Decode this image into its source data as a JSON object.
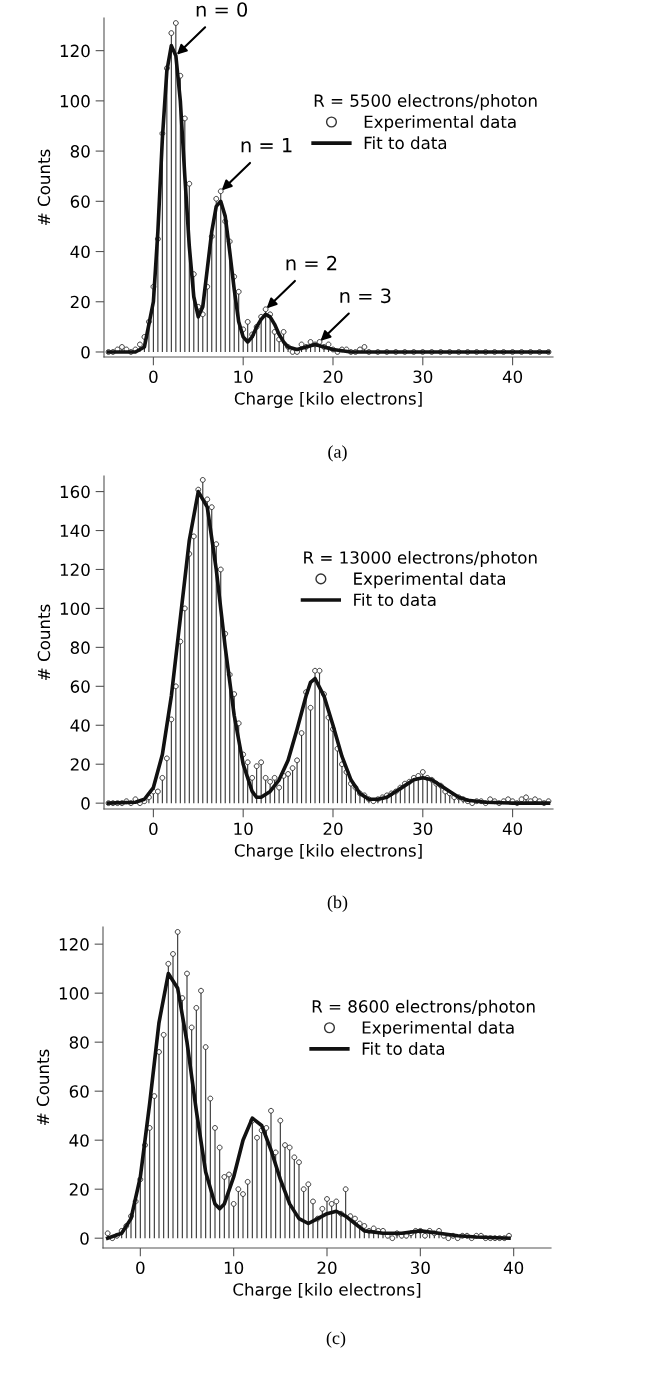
{
  "chart_data": [
    {
      "type": "lollipop",
      "xlabel": "Charge [kilo electrons]",
      "ylabel": "# Counts",
      "xlim": [
        -5.5,
        44.5
      ],
      "ylim": [
        -2,
        133
      ],
      "xticks": [
        0,
        10,
        20,
        30,
        40
      ],
      "yticks": [
        0,
        20,
        40,
        60,
        80,
        100,
        120
      ],
      "legend": "top right",
      "legend_title": "R = 5500 electrons/photon",
      "annotations": [
        {
          "text": "n = 0",
          "x": 2.5,
          "y": 118
        },
        {
          "text": "n = 1",
          "x": 7.5,
          "y": 64
        },
        {
          "text": "n = 2",
          "x": 12.5,
          "y": 17
        },
        {
          "text": "n = 3",
          "x": 18.5,
          "y": 4
        },
        "(a)"
      ],
      "series": [
        {
          "name": "Experimental data",
          "marker": "circle",
          "color": "#333333",
          "x": [
            -5,
            -4.5,
            -4,
            -3.5,
            -3,
            -2.5,
            -2,
            -1.5,
            -1,
            -0.5,
            0,
            0.5,
            1,
            1.5,
            2,
            2.5,
            3,
            3.5,
            4,
            4.5,
            5,
            5.5,
            6,
            6.5,
            7,
            7.5,
            8,
            8.5,
            9,
            9.5,
            10,
            10.5,
            11,
            11.5,
            12,
            12.5,
            13,
            13.5,
            14,
            14.5,
            15,
            15.5,
            16,
            16.5,
            17,
            17.5,
            18,
            18.5,
            19,
            19.5,
            20,
            20.5,
            21,
            21.5,
            22,
            22.5,
            23,
            23.5,
            24,
            25,
            26,
            27,
            28,
            29,
            30,
            31,
            32,
            33,
            34,
            35,
            36,
            37,
            38,
            39,
            40,
            41,
            42,
            43,
            44
          ],
          "values": [
            0,
            0,
            1,
            2,
            1,
            0,
            1,
            3,
            6,
            12,
            26,
            45,
            87,
            113,
            127,
            131,
            110,
            93,
            67,
            31,
            18,
            15,
            26,
            46,
            61,
            64,
            52,
            44,
            30,
            24,
            9,
            12,
            7,
            10,
            14,
            17,
            15,
            8,
            5,
            8,
            2,
            0,
            0,
            3,
            2,
            4,
            3,
            4,
            2,
            3,
            1,
            0,
            1,
            1,
            0,
            0,
            1,
            2,
            0,
            0,
            0,
            0,
            0,
            0,
            0,
            0,
            0,
            0,
            0,
            0,
            0,
            0,
            0,
            0,
            0,
            0,
            0,
            0,
            0
          ]
        },
        {
          "name": "Fit to data",
          "type": "line",
          "color": "#111111",
          "x": [
            -5,
            -2,
            -1,
            0,
            0.5,
            1,
            1.5,
            2,
            2.5,
            3,
            3.5,
            4,
            4.5,
            5,
            5.5,
            6,
            6.5,
            7,
            7.5,
            8,
            8.5,
            9,
            9.5,
            10,
            10.5,
            11,
            11.5,
            12,
            12.5,
            13,
            13.5,
            14,
            14.5,
            15,
            16,
            17,
            18,
            19,
            20,
            22,
            44
          ],
          "values": [
            0,
            0,
            2,
            20,
            48,
            85,
            112,
            122,
            118,
            100,
            70,
            42,
            22,
            14,
            18,
            33,
            48,
            58,
            60,
            54,
            40,
            25,
            12,
            6,
            4,
            6,
            10,
            13,
            15,
            14,
            11,
            7,
            4,
            2,
            1,
            2,
            3,
            2,
            1,
            0,
            0
          ]
        }
      ]
    },
    {
      "type": "lollipop",
      "xlabel": "Charge [kilo electrons]",
      "ylabel": "# Counts",
      "xlim": [
        -5.5,
        44.5
      ],
      "ylim": [
        -3,
        168
      ],
      "xticks": [
        0,
        10,
        20,
        30,
        40
      ],
      "yticks": [
        0,
        20,
        40,
        60,
        80,
        100,
        120,
        140,
        160
      ],
      "legend": "top right",
      "legend_title": "R = 13000 electrons/photon",
      "annotations": [
        "(b)"
      ],
      "series": [
        {
          "name": "Experimental data",
          "marker": "circle",
          "color": "#333333",
          "x": [
            -5,
            -4.5,
            -4,
            -3.5,
            -3,
            -2.5,
            -2,
            -1.5,
            -1,
            -0.5,
            0,
            0.5,
            1,
            1.5,
            2,
            2.5,
            3,
            3.5,
            4,
            4.5,
            5,
            5.5,
            6,
            6.5,
            7,
            7.5,
            8,
            8.5,
            9,
            9.5,
            10,
            10.5,
            11,
            11.5,
            12,
            12.5,
            13,
            13.5,
            14,
            14.5,
            15,
            15.5,
            16,
            16.5,
            17,
            17.5,
            18,
            18.5,
            19,
            19.5,
            20,
            20.5,
            21,
            21.5,
            22,
            22.5,
            23,
            23.5,
            24,
            24.5,
            25,
            25.5,
            26,
            26.5,
            27,
            27.5,
            28,
            28.5,
            29,
            29.5,
            30,
            30.5,
            31,
            31.5,
            32,
            32.5,
            33,
            33.5,
            34,
            34.5,
            35,
            35.5,
            36,
            36.5,
            37,
            37.5,
            38,
            38.5,
            39,
            39.5,
            40,
            40.5,
            41,
            41.5,
            42,
            42.5,
            43,
            43.5,
            44
          ],
          "values": [
            0,
            0,
            0,
            0,
            1,
            0,
            2,
            0,
            1,
            3,
            6,
            6,
            13,
            23,
            43,
            60,
            83,
            100,
            128,
            137,
            161,
            166,
            156,
            152,
            133,
            120,
            87,
            66,
            56,
            41,
            25,
            21,
            13,
            19,
            21,
            13,
            11,
            13,
            8,
            14,
            15,
            18,
            22,
            36,
            57,
            49,
            68,
            68,
            56,
            44,
            38,
            28,
            20,
            16,
            10,
            8,
            5,
            4,
            2,
            1,
            2,
            3,
            4,
            5,
            6,
            8,
            10,
            11,
            13,
            14,
            16,
            13,
            12,
            10,
            9,
            6,
            5,
            3,
            3,
            2,
            1,
            0,
            1,
            1,
            0,
            2,
            1,
            0,
            1,
            2,
            1,
            0,
            2,
            3,
            1,
            2,
            1,
            0,
            1
          ]
        },
        {
          "name": "Fit to data",
          "type": "line",
          "color": "#111111",
          "x": [
            -5,
            -2,
            -1,
            0,
            1,
            2,
            3,
            4,
            5,
            6,
            7,
            8,
            9,
            10,
            11,
            11.5,
            12,
            13,
            14,
            15,
            16,
            17,
            17.5,
            18,
            19,
            20,
            21,
            22,
            23,
            24,
            25,
            26,
            27,
            28,
            29,
            30,
            31,
            32,
            33,
            34,
            35,
            37,
            40,
            44
          ],
          "values": [
            0,
            0.5,
            2,
            8,
            25,
            55,
            95,
            135,
            160,
            152,
            120,
            80,
            45,
            20,
            6,
            3,
            3,
            6,
            12,
            22,
            38,
            55,
            62,
            64,
            55,
            40,
            24,
            12,
            5,
            2,
            2,
            3,
            6,
            9,
            12,
            13,
            12,
            9,
            6,
            3,
            1.5,
            0.5,
            0,
            0
          ]
        }
      ]
    },
    {
      "type": "lollipop",
      "xlabel": "Charge [kilo electrons]",
      "ylabel": "# Counts",
      "xlim": [
        -4,
        44
      ],
      "ylim": [
        -4,
        127
      ],
      "xticks": [
        0,
        10,
        20,
        30,
        40
      ],
      "yticks": [
        0,
        20,
        40,
        60,
        80,
        100,
        120
      ],
      "legend": "top right",
      "legend_title": "R = 8600 electrons/photon",
      "annotations": [
        "(c)"
      ],
      "series": [
        {
          "name": "Experimental data",
          "marker": "circle",
          "color": "#333333",
          "x": [
            -3.5,
            -3,
            -2.5,
            -2,
            -1.5,
            -1,
            -0.5,
            0,
            0.5,
            1,
            1.5,
            2,
            2.5,
            3,
            3.5,
            4,
            4.5,
            5,
            5.5,
            6,
            6.5,
            7,
            7.5,
            8,
            8.5,
            9,
            9.5,
            10,
            10.5,
            11,
            11.5,
            12,
            12.5,
            13,
            13.5,
            14,
            14.5,
            15,
            15.5,
            16,
            16.5,
            17,
            17.5,
            18,
            18.5,
            19,
            19.5,
            20,
            20.5,
            21,
            21.5,
            22,
            22.5,
            23,
            23.5,
            24,
            24.5,
            25,
            25.5,
            26,
            26.5,
            27,
            27.5,
            28,
            28.5,
            29,
            29.5,
            30,
            30.5,
            31,
            31.5,
            32,
            32.5,
            33,
            33.5,
            34,
            34.5,
            35,
            35.5,
            36,
            36.5,
            37,
            37.5,
            38,
            38.5,
            39,
            39.5
          ],
          "values": [
            2,
            0,
            1,
            3,
            5,
            9,
            15,
            24,
            38,
            45,
            58,
            76,
            83,
            112,
            116,
            125,
            98,
            108,
            86,
            94,
            101,
            78,
            57,
            45,
            37,
            25,
            26,
            14,
            20,
            18,
            23,
            48,
            41,
            44,
            45,
            52,
            35,
            48,
            38,
            37,
            33,
            31,
            20,
            22,
            15,
            8,
            12,
            16,
            14,
            15,
            10,
            20,
            9,
            8,
            6,
            5,
            3,
            4,
            3,
            3,
            1,
            0,
            2,
            1,
            1,
            2,
            3,
            3,
            1,
            3,
            2,
            3,
            1,
            0,
            1,
            0,
            1,
            1,
            0,
            1,
            1,
            0,
            0,
            0,
            0,
            0,
            1
          ]
        },
        {
          "name": "Fit to data",
          "type": "line",
          "color": "#111111",
          "x": [
            -3.5,
            -2,
            -1,
            0,
            1,
            2,
            3,
            4,
            5,
            6,
            7,
            8,
            8.5,
            9,
            10,
            11,
            12,
            13,
            14,
            15,
            16,
            17,
            18,
            19,
            20,
            21,
            22,
            23,
            24,
            26,
            28,
            30,
            32,
            34,
            36,
            39.5
          ],
          "values": [
            0,
            2,
            8,
            25,
            55,
            88,
            108,
            102,
            80,
            52,
            27,
            14,
            12,
            14,
            25,
            40,
            49,
            46,
            36,
            24,
            14,
            8,
            6,
            8,
            10,
            11,
            9,
            6,
            3,
            2,
            2,
            3,
            2,
            1,
            0.5,
            0
          ]
        }
      ]
    }
  ]
}
